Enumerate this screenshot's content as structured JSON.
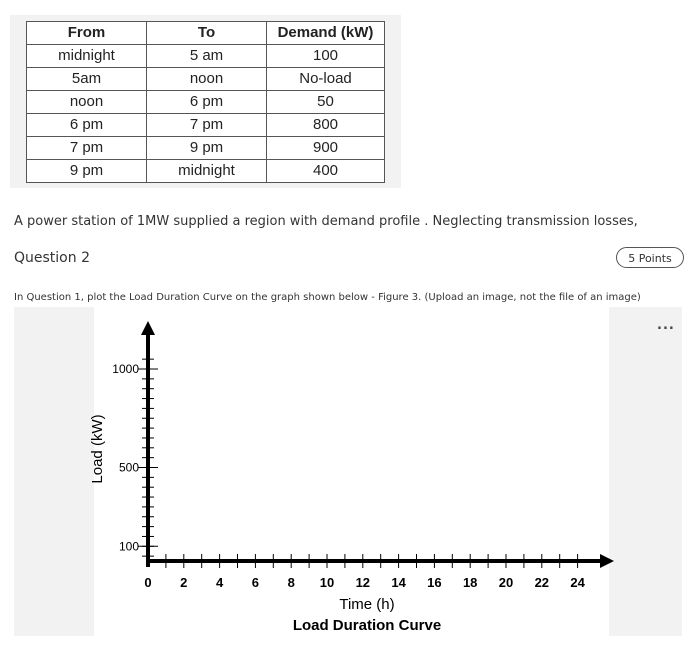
{
  "table": {
    "headers": [
      "From",
      "To",
      "Demand (kW)"
    ],
    "rows": [
      [
        "midnight",
        "5 am",
        "100"
      ],
      [
        "5am",
        "noon",
        "No-load"
      ],
      [
        "noon",
        "6 pm",
        "50"
      ],
      [
        "6 pm",
        "7 pm",
        "800"
      ],
      [
        "7 pm",
        "9 pm",
        "900"
      ],
      [
        "9 pm",
        "midnight",
        "400"
      ]
    ]
  },
  "intro_text": "A power station of 1MW supplied a region with demand profile . Neglecting transmission losses,",
  "question": {
    "title": "Question 2",
    "points": "5 Points",
    "text": "In Question 1, plot the Load Duration Curve on the graph shown below - Figure 3. (Upload an image, not the file of an image)"
  },
  "menu": {
    "more_label": "..."
  },
  "chart_data": {
    "type": "line",
    "title": "Load Duration Curve",
    "xlabel": "Time (h)",
    "ylabel": "Load (kW)",
    "x_ticks": [
      "0",
      "2",
      "4",
      "6",
      "8",
      "10",
      "12",
      "14",
      "16",
      "18",
      "20",
      "22",
      "24"
    ],
    "y_ticks": [
      "100",
      "500",
      "1000"
    ],
    "xlim": [
      0,
      24
    ],
    "ylim": [
      0,
      1100
    ],
    "series": []
  }
}
